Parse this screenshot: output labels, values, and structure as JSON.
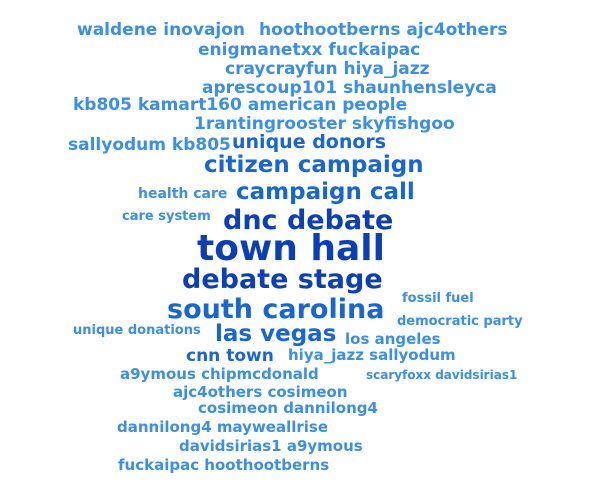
{
  "colors": {
    "dark": "#0b3fb8",
    "mid": "#1766d6",
    "light": "#3a8fe8",
    "background": "#ffffff"
  },
  "words": [
    "waldene inovajon",
    "hoothootberns ajc4others",
    "enigmanetxx fuckaipac",
    "craycrayfun hiya_jazz",
    "aprescoup101 shaunhensleyca",
    "kb805 kamart160 american people",
    "1rantingrooster skyfishgoo",
    "sallyodum kb805",
    "unique donors",
    "citizen campaign",
    "campaign call",
    "health care",
    "care system",
    "dnc debate",
    "town hall",
    "debate stage",
    "south carolina",
    "fossil fuel",
    "democratic party",
    "unique donations",
    "las vegas",
    "los angeles",
    "cnn town",
    "hiya_jazz sallyodum",
    "a9ymous chipmcdonald",
    "scaryfoxx davidsirias1",
    "ajc4others cosimeon",
    "cosimeon dannilong4",
    "dannilong4 mayweallrise",
    "davidsirias1 a9ymous",
    "fuckaipac hoothootberns"
  ]
}
